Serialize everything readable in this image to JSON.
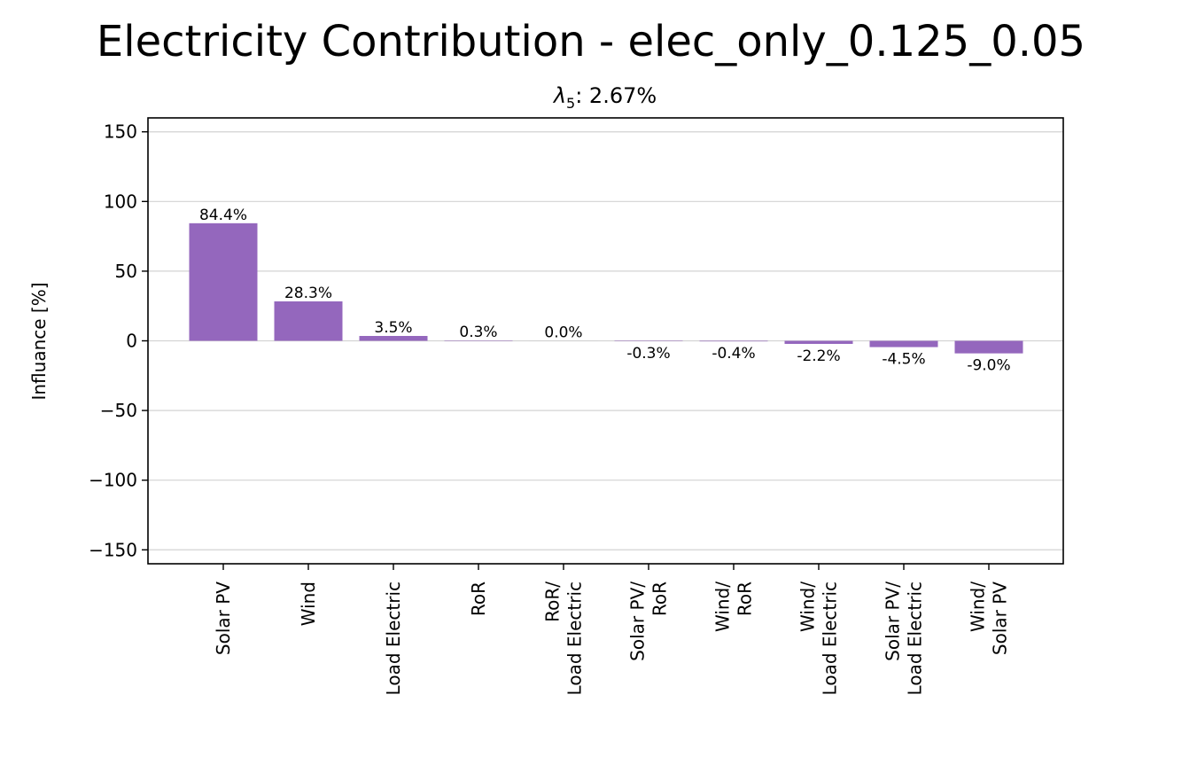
{
  "chart_data": {
    "type": "bar",
    "title": "Electricity Contribution - elec_only_0.125_0.05",
    "subtitle": {
      "symbol": "λ",
      "subscript": "5",
      "rest": ": 2.67%"
    },
    "xlabel": "",
    "ylabel": "Influance [%]",
    "ylim": [
      -160,
      160
    ],
    "yticks": [
      150,
      100,
      50,
      0,
      -50,
      -100,
      -150
    ],
    "ytick_labels": [
      "150",
      "100",
      "50",
      "0",
      "−50",
      "−100",
      "−150"
    ],
    "grid": "horizontal",
    "bar_color": "#9467bd",
    "categories": [
      [
        "Solar PV"
      ],
      [
        "Wind"
      ],
      [
        "Load Electric"
      ],
      [
        "RoR"
      ],
      [
        "RoR/",
        "Load Electric"
      ],
      [
        "Solar PV/",
        "RoR"
      ],
      [
        "Wind/",
        "RoR"
      ],
      [
        "Wind/",
        "Load Electric"
      ],
      [
        "Solar PV/",
        "Load Electric"
      ],
      [
        "Wind/",
        "Solar PV"
      ]
    ],
    "values": [
      84.4,
      28.3,
      3.5,
      0.3,
      0.0,
      -0.3,
      -0.4,
      -2.2,
      -4.5,
      -9.0
    ],
    "value_labels": [
      "84.4%",
      "28.3%",
      "3.5%",
      "0.3%",
      "0.0%",
      "-0.3%",
      "-0.4%",
      "-2.2%",
      "-4.5%",
      "-9.0%"
    ]
  }
}
